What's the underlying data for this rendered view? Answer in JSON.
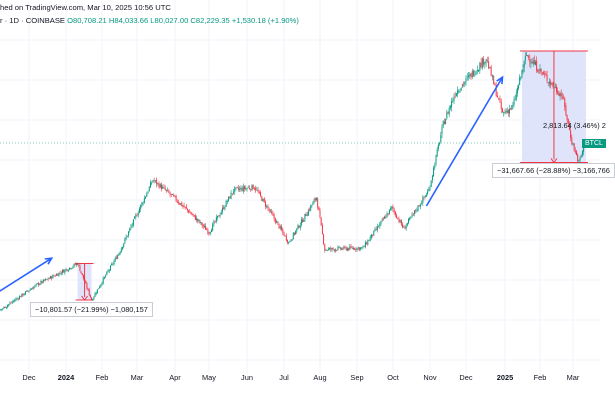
{
  "header": {
    "published": "hed on TradingView.com, Mar 10, 2025 10:56 UTC",
    "symbol": "r · 1D · COINBASE",
    "open": "O80,708.21",
    "high": "H84,033.66",
    "low": "L80,027.00",
    "close": "C82,229.35",
    "change": "+1,530.18 (+1.90%)"
  },
  "price_tag": "BTCL",
  "annotations": {
    "drop1": "−10,801.57 (−21.99%) −1,080,157",
    "drop2": "−31,667.66 (−28.88%) −3,166,766",
    "drop2_partial": "2,813.64 (3.46%) 2"
  },
  "colors": {
    "up": "#089981",
    "down": "#f23645",
    "arrow": "#2962ff",
    "box_fill": "#dfe4fb",
    "grid": "#f0f3fa"
  },
  "chart_data": {
    "type": "candlestick",
    "title": "",
    "x_ticks": [
      "Dec",
      "2024",
      "Feb",
      "Mar",
      "Apr",
      "May",
      "Jun",
      "Jul",
      "Aug",
      "Sep",
      "Oct",
      "Nov",
      "Dec",
      "2025",
      "Feb",
      "Mar"
    ],
    "last_close": 82229.35,
    "key_points": [
      {
        "date": "2023-11-15",
        "close": 37500
      },
      {
        "date": "2024-01-11",
        "close": 49000
      },
      {
        "date": "2024-01-23",
        "close": 38500
      },
      {
        "date": "2024-03-14",
        "close": 73000
      },
      {
        "date": "2024-08-05",
        "close": 53000
      },
      {
        "date": "2024-10-31",
        "close": 70000
      },
      {
        "date": "2024-12-17",
        "close": 108000
      },
      {
        "date": "2025-01-20",
        "close": 109000
      },
      {
        "date": "2025-03-06",
        "close": 78000
      },
      {
        "date": "2025-03-10",
        "close": 82229.35
      }
    ]
  }
}
